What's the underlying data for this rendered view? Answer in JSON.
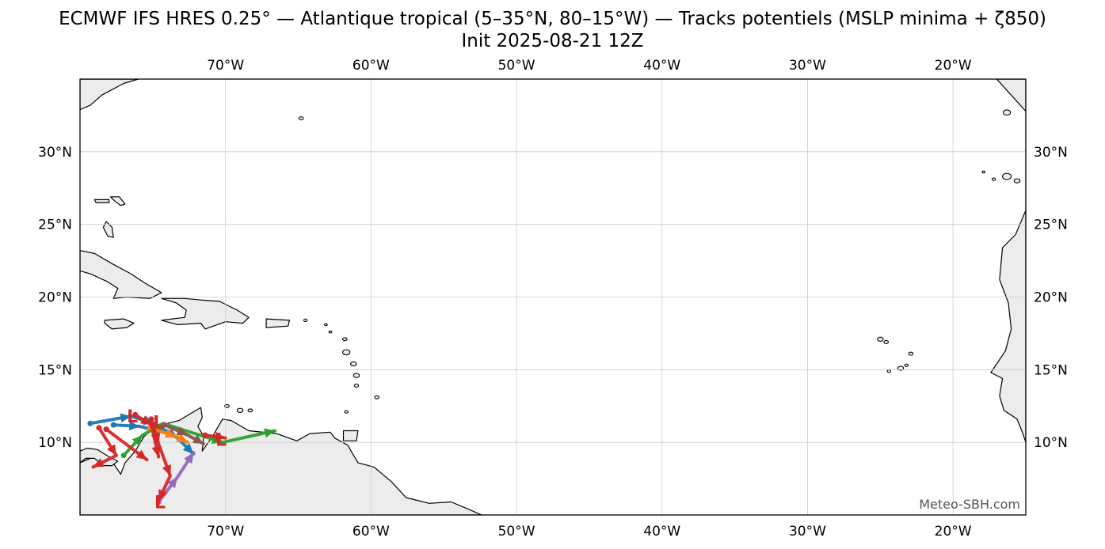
{
  "figure": {
    "title": "ECMWF IFS HRES 0.25° — Atlantique tropical (5–35°N, 80–15°W) — Tracks potentiels (MSLP minima + ζ850)",
    "subtitle": "Init 2025-08-21 12Z",
    "watermark": "Meteo-SBH.com"
  },
  "map": {
    "projection": "PlateCarree",
    "extent": {
      "lon": [
        -80,
        -15
      ],
      "lat": [
        5,
        35
      ]
    },
    "gridlines": true,
    "lon_ticks": [
      {
        "lon": -70,
        "label": "70°W"
      },
      {
        "lon": -60,
        "label": "60°W"
      },
      {
        "lon": -50,
        "label": "50°W"
      },
      {
        "lon": -40,
        "label": "40°W"
      },
      {
        "lon": -30,
        "label": "30°W"
      },
      {
        "lon": -20,
        "label": "20°W"
      }
    ],
    "lat_ticks": [
      {
        "lat": 30,
        "label": "30°N"
      },
      {
        "lat": 25,
        "label": "25°N"
      },
      {
        "lat": 20,
        "label": "20°N"
      },
      {
        "lat": 15,
        "label": "15°N"
      },
      {
        "lat": 10,
        "label": "10°N"
      }
    ],
    "colors": {
      "land": "#ececec",
      "coast": "#000000",
      "grid": "#cccccc"
    }
  },
  "chart_data": {
    "type": "scatter",
    "tracks": [
      {
        "color": "#1f77b4",
        "points": [
          [
            -79.3,
            11.3
          ],
          [
            -76.5,
            11.8
          ],
          [
            -74.9,
            11.3
          ],
          [
            -73.3,
            10.3
          ],
          [
            -72.2,
            9.2
          ]
        ]
      },
      {
        "color": "#1f77b4",
        "points": [
          [
            -77.7,
            11.2
          ],
          [
            -75.9,
            11.1
          ],
          [
            -74.2,
            10.7
          ]
        ]
      },
      {
        "color": "#2ca02c",
        "points": [
          [
            -77.0,
            9.1
          ],
          [
            -75.7,
            10.5
          ],
          [
            -74.3,
            11.3
          ],
          [
            -70.2,
            10.0
          ],
          [
            -66.6,
            10.8
          ]
        ]
      },
      {
        "color": "#ff7f0e",
        "points": [
          [
            -75.2,
            11.0
          ],
          [
            -73.4,
            10.4
          ],
          [
            -72.6,
            10.0
          ]
        ]
      },
      {
        "color": "#9467bd",
        "points": [
          [
            -74.6,
            5.9
          ],
          [
            -73.3,
            7.6
          ],
          [
            -72.2,
            9.3
          ]
        ]
      },
      {
        "color": "#8c564b",
        "points": [
          [
            -74.2,
            11.2
          ],
          [
            -72.6,
            10.5
          ],
          [
            -71.5,
            9.9
          ]
        ]
      },
      {
        "color": "#d62728",
        "points": [
          [
            -78.2,
            10.9
          ],
          [
            -75.4,
            8.8
          ]
        ]
      },
      {
        "color": "#d62728",
        "points": [
          [
            -78.7,
            11.0
          ],
          [
            -77.5,
            9.1
          ],
          [
            -79.1,
            8.3
          ]
        ]
      },
      {
        "color": "#d62728",
        "points": [
          [
            -75.1,
            11.6
          ],
          [
            -74.6,
            9.9
          ],
          [
            -73.8,
            7.7
          ],
          [
            -74.6,
            6.0
          ]
        ]
      },
      {
        "color": "#d62728",
        "points": [
          [
            -76.2,
            11.9
          ],
          [
            -75.1,
            11.2
          ],
          [
            -74.6,
            9.0
          ]
        ]
      },
      {
        "color": "#d62728",
        "points": [
          [
            -71.4,
            10.5
          ],
          [
            -70.0,
            10.3
          ]
        ]
      }
    ],
    "markers": [
      {
        "type": "L",
        "color": "#d62728",
        "lon": -76.4,
        "lat": 11.8
      },
      {
        "type": "L",
        "color": "#d62728",
        "lon": -74.6,
        "lat": 11.4
      },
      {
        "type": "L",
        "color": "#d62728",
        "lon": -74.5,
        "lat": 5.9
      },
      {
        "type": "L",
        "color": "#d62728",
        "lon": -70.3,
        "lat": 10.2
      }
    ]
  }
}
